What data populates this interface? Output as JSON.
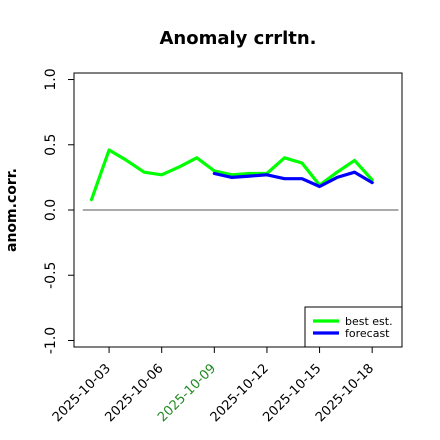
{
  "chart_data": {
    "type": "line",
    "title": "Anomaly crrltn.",
    "ylabel": "anom.corr.",
    "xlabel": "",
    "ylim": [
      -1.05,
      1.05
    ],
    "yticks": [
      "-1.0",
      "-0.5",
      "0.0",
      "0.5",
      "1.0"
    ],
    "ytick_values": [
      -1.0,
      -0.5,
      0.0,
      0.5,
      1.0
    ],
    "xtick_labels": [
      "2025-10-03",
      "2025-10-06",
      "2025-10-09",
      "2025-10-12",
      "2025-10-15",
      "2025-10-18"
    ],
    "xtick_days": [
      3,
      6,
      9,
      12,
      15,
      18
    ],
    "highlighted_tick": "2025-10-09",
    "highlight_color": "#228B22",
    "reference_line": 0.0,
    "legend_position": "bottom-right",
    "series": [
      {
        "name": "best est.",
        "color": "#00ff00",
        "x": [
          2,
          3,
          4,
          5,
          6,
          7,
          8,
          9,
          10,
          11,
          12,
          13,
          14,
          15,
          16,
          17,
          18
        ],
        "values": [
          0.08,
          0.46,
          0.38,
          0.29,
          0.27,
          0.33,
          0.4,
          0.3,
          0.27,
          0.28,
          0.28,
          0.4,
          0.36,
          0.19,
          0.29,
          0.38,
          0.23
        ]
      },
      {
        "name": "forecast",
        "color": "#0000ff",
        "x": [
          9,
          10,
          11,
          12,
          13,
          14,
          15,
          16,
          17,
          18
        ],
        "values": [
          0.28,
          0.25,
          0.26,
          0.27,
          0.24,
          0.24,
          0.18,
          0.25,
          0.29,
          0.21
        ]
      }
    ]
  }
}
